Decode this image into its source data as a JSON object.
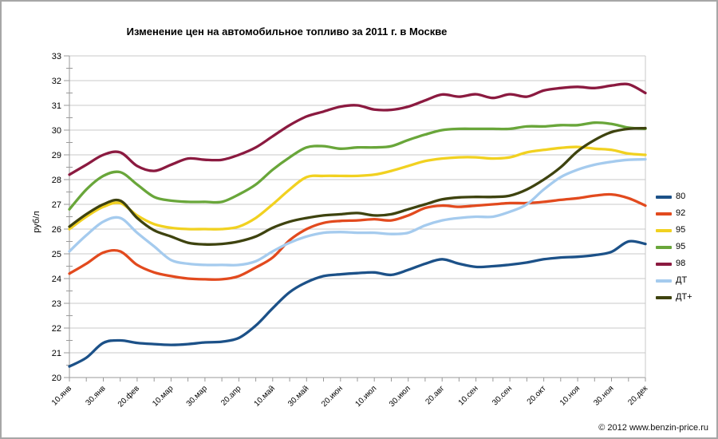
{
  "chart_data": {
    "type": "line",
    "title": "Изменение цен на автомобильное топливо за 2011 г. в Москве",
    "ylabel": "руб/л",
    "ylim": [
      20,
      33
    ],
    "y_tick_step": 1,
    "grid": "horizontal",
    "grid_color": "#c8c8c8",
    "axis_color": "#9a9a9a",
    "legend_position": "right",
    "x_note": "points sampled every 10 days, 10 Jan - 20 Dec 2011",
    "x_tick_labels": [
      "10.янв",
      "30.янв",
      "20.фев",
      "10.мар",
      "30.мар",
      "20.апр",
      "10.май",
      "30.май",
      "20.июн",
      "10.июл",
      "30.июл",
      "20.авг",
      "10.сен",
      "30.сен",
      "20.окт",
      "10.ноя",
      "30.ноя",
      "20.дек"
    ],
    "series": [
      {
        "name": "80",
        "color": "#1c5188",
        "values": [
          20.45,
          20.8,
          21.4,
          21.5,
          21.4,
          21.35,
          21.32,
          21.35,
          21.42,
          21.45,
          21.6,
          22.1,
          22.8,
          23.45,
          23.85,
          24.1,
          24.17,
          24.22,
          24.25,
          24.15,
          24.35,
          24.6,
          24.78,
          24.6,
          24.47,
          24.5,
          24.56,
          24.65,
          24.78,
          24.85,
          24.88,
          24.95,
          25.08,
          25.5,
          25.4
        ]
      },
      {
        "name": "92",
        "color": "#e24a1e",
        "values": [
          24.2,
          24.6,
          25.05,
          25.1,
          24.55,
          24.25,
          24.1,
          24.0,
          23.97,
          23.97,
          24.1,
          24.45,
          24.85,
          25.55,
          26.0,
          26.25,
          26.33,
          26.35,
          26.4,
          26.35,
          26.55,
          26.85,
          26.95,
          26.9,
          26.95,
          27.0,
          27.05,
          27.05,
          27.1,
          27.18,
          27.25,
          27.35,
          27.4,
          27.25,
          26.95
        ]
      },
      {
        "name": "95",
        "color": "#f1d120",
        "values": [
          26.0,
          26.5,
          26.9,
          27.05,
          26.55,
          26.2,
          26.05,
          26.0,
          26.0,
          26.0,
          26.1,
          26.45,
          27.0,
          27.6,
          28.1,
          28.15,
          28.15,
          28.15,
          28.2,
          28.35,
          28.55,
          28.75,
          28.85,
          28.9,
          28.9,
          28.85,
          28.9,
          29.1,
          29.2,
          29.28,
          29.32,
          29.25,
          29.2,
          29.05,
          29.0
        ]
      },
      {
        "name": "95",
        "color": "#69a63a",
        "values": [
          26.8,
          27.6,
          28.15,
          28.3,
          27.8,
          27.3,
          27.15,
          27.1,
          27.1,
          27.1,
          27.4,
          27.8,
          28.4,
          28.9,
          29.3,
          29.35,
          29.25,
          29.3,
          29.3,
          29.35,
          29.6,
          29.82,
          30.0,
          30.05,
          30.05,
          30.05,
          30.05,
          30.15,
          30.15,
          30.2,
          30.2,
          30.3,
          30.25,
          30.1,
          30.05
        ]
      },
      {
        "name": "98",
        "color": "#8b1a40",
        "values": [
          28.2,
          28.6,
          29.0,
          29.1,
          28.55,
          28.35,
          28.6,
          28.85,
          28.8,
          28.8,
          29.0,
          29.3,
          29.75,
          30.2,
          30.55,
          30.75,
          30.95,
          31.0,
          30.83,
          30.82,
          30.95,
          31.2,
          31.44,
          31.35,
          31.45,
          31.3,
          31.45,
          31.35,
          31.6,
          31.7,
          31.75,
          31.7,
          31.8,
          31.85,
          31.5
        ]
      },
      {
        "name": "ДТ",
        "color": "#a5cbee",
        "values": [
          25.1,
          25.75,
          26.3,
          26.45,
          25.85,
          25.3,
          24.75,
          24.6,
          24.55,
          24.55,
          24.55,
          24.7,
          25.1,
          25.45,
          25.7,
          25.85,
          25.88,
          25.85,
          25.85,
          25.8,
          25.85,
          26.15,
          26.35,
          26.45,
          26.5,
          26.5,
          26.7,
          27.0,
          27.6,
          28.1,
          28.4,
          28.6,
          28.72,
          28.8,
          28.82
        ]
      },
      {
        "name": "ДТ+",
        "color": "#3e430f",
        "values": [
          26.1,
          26.6,
          27.0,
          27.15,
          26.45,
          25.95,
          25.7,
          25.45,
          25.38,
          25.4,
          25.5,
          25.7,
          26.05,
          26.3,
          26.45,
          26.55,
          26.6,
          26.65,
          26.55,
          26.6,
          26.8,
          27.0,
          27.2,
          27.28,
          27.3,
          27.3,
          27.35,
          27.6,
          28.0,
          28.5,
          29.15,
          29.6,
          29.92,
          30.05,
          30.08
        ]
      }
    ]
  },
  "footer": {
    "copyright": "© 2012 www.benzin-price.ru"
  }
}
